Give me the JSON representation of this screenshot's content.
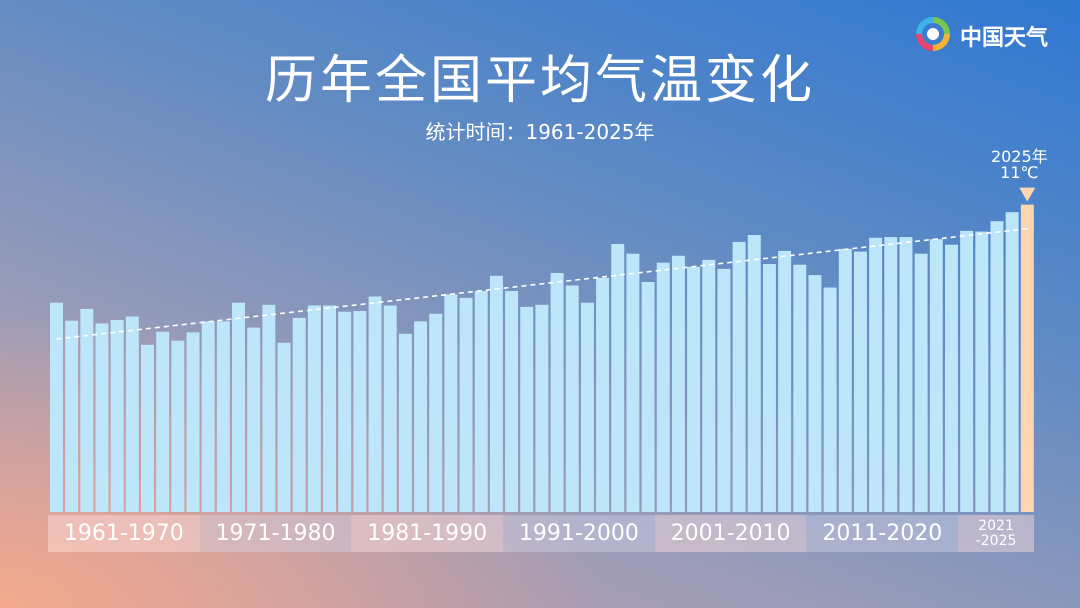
{
  "chart_data": {
    "type": "bar",
    "title": "历年全国平均气温变化",
    "subtitle": "统计时间：1961-2025年",
    "brand": "中国天气",
    "annotation": "2025年",
    "categories": [
      null,
      null,
      null,
      null,
      null,
      null,
      null,
      null,
      null,
      null,
      null,
      null,
      null,
      null,
      null,
      null,
      null,
      null,
      null,
      null,
      null,
      null,
      null,
      null,
      null,
      null,
      null,
      null,
      null,
      null,
      null,
      null,
      null,
      null,
      null,
      null,
      null,
      null,
      null,
      null,
      null,
      null,
      null,
      null,
      null,
      null,
      null,
      null,
      null,
      null,
      null,
      null,
      null,
      null,
      null,
      null,
      null,
      null,
      null,
      null,
      null,
      null,
      null,
      null,
      null
    ],
    "values": [
      9.58,
      9.32,
      9.49,
      9.28,
      9.33,
      9.38,
      8.97,
      9.16,
      9.03,
      9.15,
      9.31,
      9.31,
      9.58,
      9.22,
      9.55,
      9.0,
      9.36,
      9.54,
      9.54,
      9.45,
      9.46,
      9.67,
      9.54,
      9.13,
      9.31,
      9.42,
      9.7,
      9.65,
      9.75,
      9.97,
      9.75,
      9.52,
      9.55,
      10.01,
      9.83,
      9.58,
      9.94,
      10.43,
      10.29,
      9.88,
      10.16,
      10.26,
      10.1,
      10.2,
      10.07,
      10.46,
      10.56,
      10.14,
      10.33,
      10.13,
      9.98,
      9.8,
      10.36,
      10.32,
      10.52,
      10.53,
      10.53,
      10.29,
      10.5,
      10.42,
      10.62,
      10.61,
      10.76,
      10.89,
      11
    ],
    "value_labels": [
      null,
      null,
      null,
      null,
      null,
      null,
      null,
      null,
      null,
      null,
      null,
      null,
      null,
      null,
      null,
      null,
      null,
      null,
      null,
      null,
      null,
      null,
      null,
      null,
      null,
      null,
      null,
      null,
      null,
      null,
      null,
      null,
      null,
      null,
      null,
      null,
      null,
      null,
      null,
      null,
      null,
      null,
      null,
      null,
      null,
      null,
      null,
      null,
      null,
      null,
      null,
      null,
      null,
      null,
      null,
      null,
      null,
      null,
      null,
      null,
      null,
      null,
      null,
      null,
      "11℃"
    ],
    "groups": [
      {
        "label": "1961-1970",
        "count": 10
      },
      {
        "label": "1971-1980",
        "count": 10
      },
      {
        "label": "1981-1990",
        "count": 10
      },
      {
        "label": "1991-2000",
        "count": 10
      },
      {
        "label": "2001-2010",
        "count": 10
      },
      {
        "label": "2011-2020",
        "count": 10
      },
      {
        "label": "2021\n-2025",
        "count": 5
      }
    ],
    "ylim": [
      6.55,
      11.4
    ],
    "color": "#bde6fb",
    "highlight_color": "#fdd6b0",
    "trend": true
  }
}
